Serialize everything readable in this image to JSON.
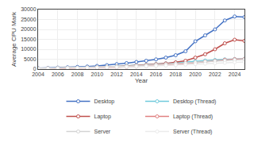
{
  "chart_data": {
    "type": "line",
    "x": [
      2004,
      2005,
      2006,
      2007,
      2008,
      2009,
      2010,
      2011,
      2012,
      2013,
      2014,
      2015,
      2016,
      2017,
      2018,
      2019,
      2020,
      2021,
      2022,
      2023,
      2024,
      2025
    ],
    "series": [
      {
        "name": "Desktop",
        "color": "#4472C4",
        "values": [
          500,
          600,
          750,
          900,
          1100,
          1300,
          1600,
          2000,
          2500,
          3000,
          3600,
          4200,
          4900,
          5800,
          7000,
          9000,
          14000,
          17000,
          20000,
          24500,
          26500,
          26200
        ]
      },
      {
        "name": "Desktop (Thread)",
        "color": "#70CADC",
        "values": [
          300,
          380,
          450,
          530,
          620,
          730,
          900,
          1100,
          1350,
          1600,
          1900,
          2200,
          2550,
          2900,
          3300,
          3700,
          4000,
          4300,
          4600,
          4900,
          5100,
          5200
        ]
      },
      {
        "name": "Laptop",
        "color": "#C0504D",
        "values": [
          300,
          370,
          440,
          520,
          620,
          730,
          880,
          1050,
          1250,
          1500,
          1800,
          2100,
          2450,
          2850,
          3400,
          4200,
          5800,
          7500,
          10000,
          13000,
          14800,
          14200
        ]
      },
      {
        "name": "Laptop (Thread)",
        "color": "#E08080",
        "values": [
          200,
          250,
          300,
          360,
          430,
          510,
          620,
          760,
          920,
          1100,
          1300,
          1530,
          1780,
          2060,
          2400,
          2800,
          3200,
          3700,
          4200,
          4700,
          5000,
          5100
        ]
      },
      {
        "name": "Server",
        "color": "#D3D3D3",
        "values": [
          400,
          480,
          560,
          650,
          750,
          860,
          980,
          1120,
          1280,
          1460,
          1680,
          1900,
          2150,
          2420,
          2720,
          3050,
          3400,
          3750,
          4050,
          4350,
          4700,
          4900
        ]
      },
      {
        "name": "Server (Thread)",
        "color": "#EBEBEB",
        "values": [
          280,
          340,
          400,
          470,
          540,
          620,
          710,
          820,
          940,
          1070,
          1230,
          1390,
          1570,
          1770,
          1990,
          2230,
          2490,
          2730,
          2950,
          3180,
          3450,
          3600
        ]
      }
    ],
    "xlabel": "Year",
    "ylabel": "Average CPU Mark",
    "xlim": [
      2004,
      2025
    ],
    "xticks": [
      2004,
      2006,
      2008,
      2010,
      2012,
      2014,
      2016,
      2018,
      2020,
      2022,
      2024
    ],
    "ylim": [
      0,
      30000
    ],
    "yticks": [
      0,
      5000,
      10000,
      15000,
      20000,
      25000,
      30000
    ],
    "grid": true,
    "legend": "bottom",
    "marker": "circle"
  }
}
